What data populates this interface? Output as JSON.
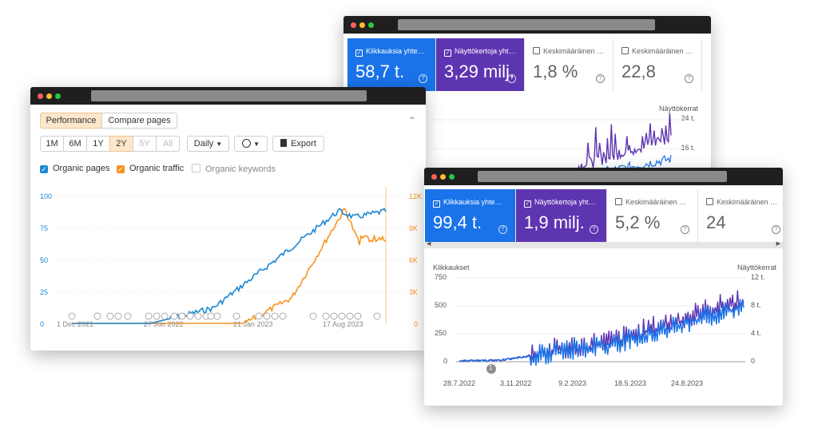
{
  "win_back": {
    "cards": [
      {
        "label": "Klikkauksia yhte…",
        "value": "58,7 t.",
        "variant": "blue"
      },
      {
        "label": "Näyttökertoja yht…",
        "value": "3,29 milj.",
        "variant": "purple"
      },
      {
        "label": "Keskimääräinen …",
        "value": "1,8 %",
        "variant": "white"
      },
      {
        "label": "Keskimääräinen …",
        "value": "22,8",
        "variant": "white"
      }
    ],
    "right_axis_title": "Näyttökerrat",
    "right_ticks": [
      "24 t.",
      "16 t."
    ]
  },
  "win_ahrefs": {
    "tabs": {
      "performance": "Performance",
      "compare": "Compare pages"
    },
    "ranges": [
      "1M",
      "6M",
      "1Y",
      "2Y",
      "5Y",
      "All"
    ],
    "active_range": "2Y",
    "disabled_ranges": [
      "5Y",
      "All"
    ],
    "interval": "Daily",
    "export": "Export",
    "legend": {
      "pages": "Organic pages",
      "traffic": "Organic traffic",
      "keywords": "Organic keywords"
    },
    "left_ticks": [
      "100",
      "75",
      "50",
      "25",
      "0"
    ],
    "right_ticks": [
      "12K",
      "9K",
      "6K",
      "3K",
      "0"
    ],
    "x_ticks": [
      "1 Dec 2021",
      "27 Jun 2022",
      "21 Jan 2023",
      "17 Aug 2023"
    ],
    "colors": {
      "pages": "#1c87d4",
      "traffic": "#f7931e"
    }
  },
  "win_front": {
    "cards": [
      {
        "label": "Klikkauksia yhte…",
        "value": "99,4 t.",
        "variant": "blue"
      },
      {
        "label": "Näyttökertoja yht…",
        "value": "1,9 milj.",
        "variant": "purple"
      },
      {
        "label": "Keskimääräinen …",
        "value": "5,2 %",
        "variant": "white"
      },
      {
        "label": "Keskimääräinen …",
        "value": "24",
        "variant": "white"
      }
    ],
    "left_axis_title": "Klikkaukset",
    "right_axis_title": "Näyttökerrat",
    "left_ticks": [
      "750",
      "500",
      "250",
      "0"
    ],
    "right_ticks": [
      "12 t.",
      "8 t.",
      "4 t.",
      "0"
    ],
    "x_ticks": [
      "28.7.2022",
      "3.11.2022",
      "9.2.2023",
      "18.5.2023",
      "24.8.2023"
    ],
    "annotation": "1",
    "colors": {
      "clicks": "#1a73e8",
      "impressions": "#5e35b1"
    }
  }
}
